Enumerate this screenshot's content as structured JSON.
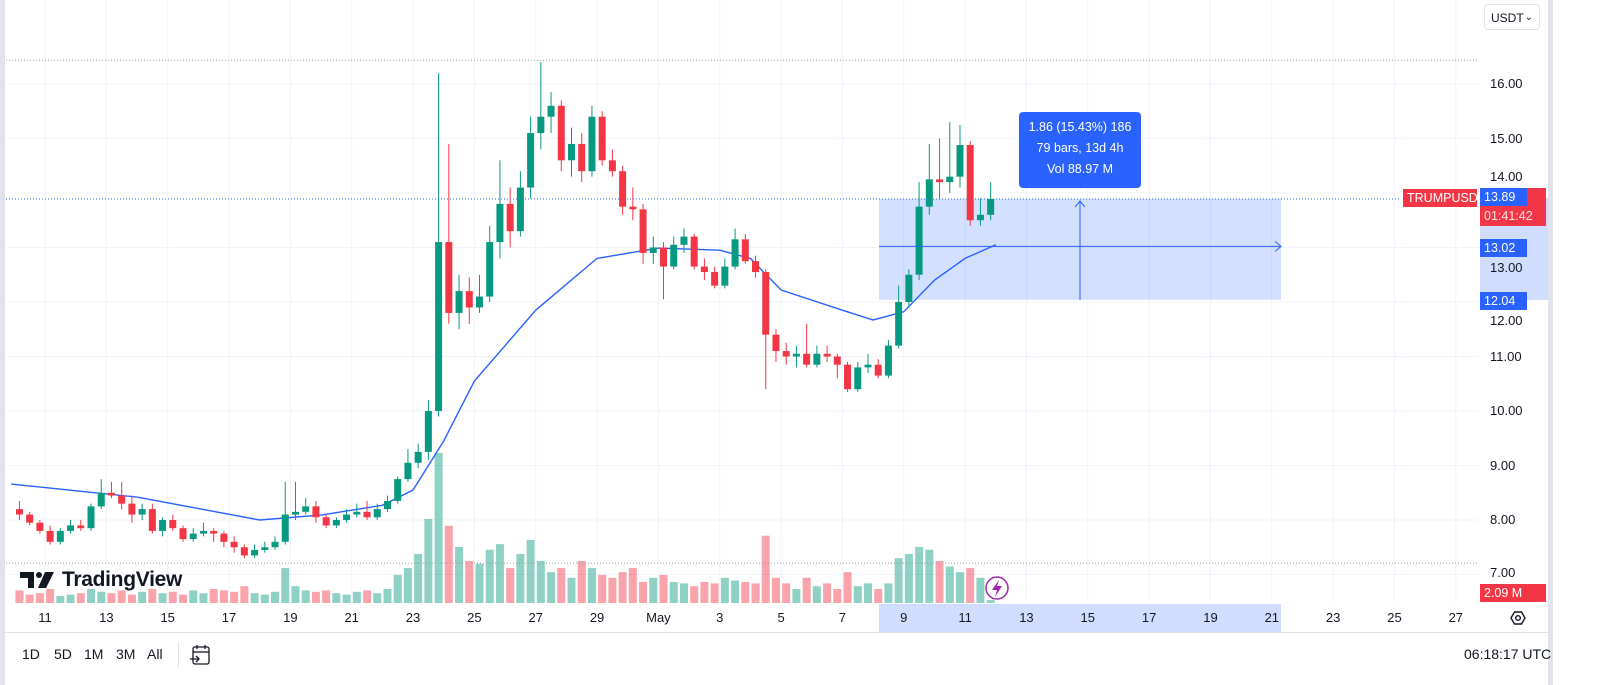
{
  "symbol": "TRUMPUSDT",
  "currency_selector": "USDT",
  "last_price": "13.89",
  "countdown": "01:41:42",
  "last_volume": "2.09 M",
  "clock": "06:18:17 UTC",
  "logo": "TradingView",
  "range_buttons": [
    "1D",
    "5D",
    "1M",
    "3M",
    "All"
  ],
  "measure": {
    "line1": "1.86 (15.43%) 186",
    "line2": "79 bars, 13d 4h",
    "line3": "Vol 88.97 M",
    "from_price": 12.04,
    "to_price": 13.89,
    "mid_price": 13.02,
    "from_label": "12.04",
    "to_label": "13.89",
    "mid_label": "13.02"
  },
  "colors": {
    "up": "#089981",
    "down": "#f23645",
    "ma": "#2962ff",
    "accent": "#2962ff",
    "alert": "#9c27b0"
  },
  "icons": {
    "calendar": "go-to-date-icon",
    "settings": "settings-icon",
    "alert": "lightning-icon",
    "dropdown": "chevron-down-icon"
  },
  "chart_data": {
    "type": "candlestick",
    "price_ticks": [
      "16.00",
      "15.00",
      "14.00",
      "13.00",
      "12.00",
      "11.00",
      "10.00",
      "9.00",
      "8.00",
      "7.00"
    ],
    "ylim": [
      6.5,
      17.1
    ],
    "x_ticks": [
      "11",
      "13",
      "15",
      "17",
      "19",
      "21",
      "23",
      "25",
      "27",
      "29",
      "May",
      "3",
      "5",
      "7",
      "9",
      "11",
      "13",
      "15",
      "17",
      "19",
      "21",
      "23",
      "25",
      "27"
    ],
    "x_range": [
      "Apr 10",
      "May 27"
    ],
    "candles_ohlc": [
      [
        8.2,
        8.35,
        8.0,
        8.1
      ],
      [
        8.1,
        8.15,
        7.9,
        7.95
      ],
      [
        7.95,
        8.0,
        7.75,
        7.8
      ],
      [
        7.8,
        7.9,
        7.55,
        7.6
      ],
      [
        7.6,
        7.85,
        7.55,
        7.8
      ],
      [
        7.8,
        8.0,
        7.75,
        7.9
      ],
      [
        7.9,
        8.0,
        7.8,
        7.85
      ],
      [
        7.85,
        8.3,
        7.8,
        8.25
      ],
      [
        8.25,
        8.75,
        8.2,
        8.5
      ],
      [
        8.5,
        8.7,
        8.4,
        8.45
      ],
      [
        8.45,
        8.7,
        8.2,
        8.3
      ],
      [
        8.3,
        8.45,
        7.95,
        8.1
      ],
      [
        8.1,
        8.3,
        8.0,
        8.2
      ],
      [
        8.2,
        8.3,
        7.75,
        7.8
      ],
      [
        7.8,
        8.05,
        7.7,
        8.0
      ],
      [
        8.0,
        8.1,
        7.8,
        7.85
      ],
      [
        7.85,
        7.9,
        7.6,
        7.65
      ],
      [
        7.65,
        7.85,
        7.6,
        7.75
      ],
      [
        7.75,
        7.95,
        7.7,
        7.8
      ],
      [
        7.8,
        7.85,
        7.6,
        7.75
      ],
      [
        7.75,
        7.8,
        7.5,
        7.6
      ],
      [
        7.6,
        7.7,
        7.4,
        7.5
      ],
      [
        7.5,
        7.55,
        7.3,
        7.35
      ],
      [
        7.35,
        7.55,
        7.3,
        7.45
      ],
      [
        7.45,
        7.6,
        7.4,
        7.5
      ],
      [
        7.5,
        7.7,
        7.45,
        7.6
      ],
      [
        7.6,
        8.7,
        7.55,
        8.1
      ],
      [
        8.1,
        8.7,
        8.0,
        8.15
      ],
      [
        8.15,
        8.4,
        8.1,
        8.25
      ],
      [
        8.25,
        8.35,
        7.95,
        8.05
      ],
      [
        8.05,
        8.1,
        7.85,
        7.9
      ],
      [
        7.9,
        8.05,
        7.85,
        8.0
      ],
      [
        8.0,
        8.2,
        7.95,
        8.1
      ],
      [
        8.1,
        8.3,
        8.05,
        8.15
      ],
      [
        8.15,
        8.35,
        8.0,
        8.05
      ],
      [
        8.05,
        8.3,
        8.0,
        8.2
      ],
      [
        8.2,
        8.45,
        8.15,
        8.35
      ],
      [
        8.35,
        8.8,
        8.3,
        8.75
      ],
      [
        8.75,
        9.3,
        8.7,
        9.05
      ],
      [
        9.05,
        9.4,
        8.95,
        9.25
      ],
      [
        9.25,
        10.2,
        9.1,
        10.0
      ],
      [
        10.0,
        16.2,
        9.9,
        13.1
      ],
      [
        13.1,
        14.9,
        11.6,
        11.8
      ],
      [
        11.8,
        12.5,
        11.5,
        12.2
      ],
      [
        12.2,
        12.45,
        11.6,
        11.9
      ],
      [
        11.9,
        12.5,
        11.8,
        12.1
      ],
      [
        12.1,
        13.4,
        12.0,
        13.1
      ],
      [
        13.1,
        14.6,
        12.8,
        13.8
      ],
      [
        13.8,
        14.1,
        13.0,
        13.3
      ],
      [
        13.3,
        14.4,
        13.2,
        14.1
      ],
      [
        14.1,
        15.4,
        13.9,
        15.1
      ],
      [
        15.1,
        16.4,
        14.8,
        15.4
      ],
      [
        15.4,
        15.85,
        15.1,
        15.6
      ],
      [
        15.6,
        15.7,
        14.4,
        14.6
      ],
      [
        14.6,
        15.2,
        14.3,
        14.9
      ],
      [
        14.9,
        15.1,
        14.2,
        14.4
      ],
      [
        14.4,
        15.6,
        14.3,
        15.4
      ],
      [
        15.4,
        15.5,
        14.5,
        14.6
      ],
      [
        14.6,
        14.8,
        14.3,
        14.4
      ],
      [
        14.4,
        14.5,
        13.6,
        13.75
      ],
      [
        13.75,
        14.1,
        13.5,
        13.7
      ],
      [
        13.7,
        13.8,
        12.7,
        12.9
      ],
      [
        12.9,
        13.2,
        12.7,
        13.0
      ],
      [
        13.0,
        13.1,
        12.05,
        12.65
      ],
      [
        12.65,
        13.2,
        12.6,
        13.05
      ],
      [
        13.05,
        13.35,
        12.9,
        13.2
      ],
      [
        13.2,
        13.25,
        12.6,
        12.65
      ],
      [
        12.65,
        12.8,
        12.4,
        12.55
      ],
      [
        12.55,
        12.65,
        12.25,
        12.3
      ],
      [
        12.3,
        12.8,
        12.25,
        12.65
      ],
      [
        12.65,
        13.35,
        12.6,
        13.15
      ],
      [
        13.15,
        13.25,
        12.7,
        12.75
      ],
      [
        12.75,
        12.85,
        12.45,
        12.55
      ],
      [
        12.55,
        12.6,
        10.4,
        11.4
      ],
      [
        11.4,
        11.5,
        10.9,
        11.1
      ],
      [
        11.1,
        11.25,
        10.85,
        11.0
      ],
      [
        11.0,
        11.2,
        10.8,
        11.05
      ],
      [
        11.05,
        11.6,
        10.8,
        10.85
      ],
      [
        10.85,
        11.2,
        10.8,
        11.05
      ],
      [
        11.05,
        11.2,
        10.9,
        11.0
      ],
      [
        11.0,
        11.05,
        10.6,
        10.85
      ],
      [
        10.85,
        10.9,
        10.35,
        10.4
      ],
      [
        10.4,
        10.9,
        10.35,
        10.8
      ],
      [
        10.8,
        11.05,
        10.7,
        10.85
      ],
      [
        10.85,
        10.95,
        10.6,
        10.65
      ],
      [
        10.65,
        11.3,
        10.6,
        11.2
      ],
      [
        11.2,
        12.3,
        11.15,
        12.0
      ],
      [
        12.0,
        12.6,
        11.9,
        12.5
      ],
      [
        12.5,
        14.2,
        12.4,
        13.75
      ],
      [
        13.75,
        14.9,
        13.6,
        14.25
      ],
      [
        14.25,
        15.0,
        13.9,
        14.2
      ],
      [
        14.2,
        15.3,
        14.0,
        14.3
      ],
      [
        14.3,
        15.25,
        14.1,
        14.88
      ],
      [
        14.88,
        14.95,
        13.4,
        13.5
      ],
      [
        13.5,
        13.9,
        13.4,
        13.6
      ],
      [
        13.6,
        14.2,
        13.5,
        13.89
      ]
    ],
    "volume_m": [
      9,
      6,
      7,
      10,
      5,
      6,
      7,
      10,
      8,
      7,
      9,
      6,
      8,
      10,
      7,
      8,
      6,
      9,
      7,
      10,
      9,
      8,
      12,
      7,
      6,
      8,
      25,
      12,
      9,
      8,
      9,
      7,
      6,
      8,
      9,
      7,
      10,
      20,
      25,
      35,
      60,
      107,
      55,
      40,
      30,
      28,
      38,
      42,
      25,
      35,
      45,
      30,
      22,
      25,
      18,
      30,
      25,
      20,
      18,
      22,
      25,
      15,
      18,
      20,
      15,
      14,
      12,
      15,
      14,
      18,
      16,
      15,
      14,
      48,
      18,
      14,
      10,
      18,
      12,
      14,
      10,
      22,
      12,
      14,
      10,
      14,
      32,
      35,
      40,
      38,
      30,
      26,
      22,
      25,
      18,
      2.09
    ],
    "moving_average": [
      [
        "Apr 10",
        8.66
      ],
      [
        "Apr 14",
        8.42
      ],
      [
        "Apr 18",
        8.0
      ],
      [
        "Apr 20",
        8.09
      ],
      [
        "Apr 22",
        8.27
      ],
      [
        "Apr 23",
        8.55
      ],
      [
        "Apr 24",
        9.45
      ],
      [
        "Apr 25",
        10.55
      ],
      [
        "Apr 27",
        11.85
      ],
      [
        "Apr 29",
        12.8
      ],
      [
        "May 1",
        12.99
      ],
      [
        "May 3",
        12.95
      ],
      [
        "May 4",
        12.8
      ],
      [
        "May 5",
        12.22
      ],
      [
        "May 7",
        11.85
      ],
      [
        "May 8",
        11.67
      ],
      [
        "May 9",
        11.82
      ],
      [
        "May 10",
        12.4
      ],
      [
        "May 11",
        12.8
      ],
      [
        "May 12",
        13.05
      ]
    ],
    "grid": true
  }
}
